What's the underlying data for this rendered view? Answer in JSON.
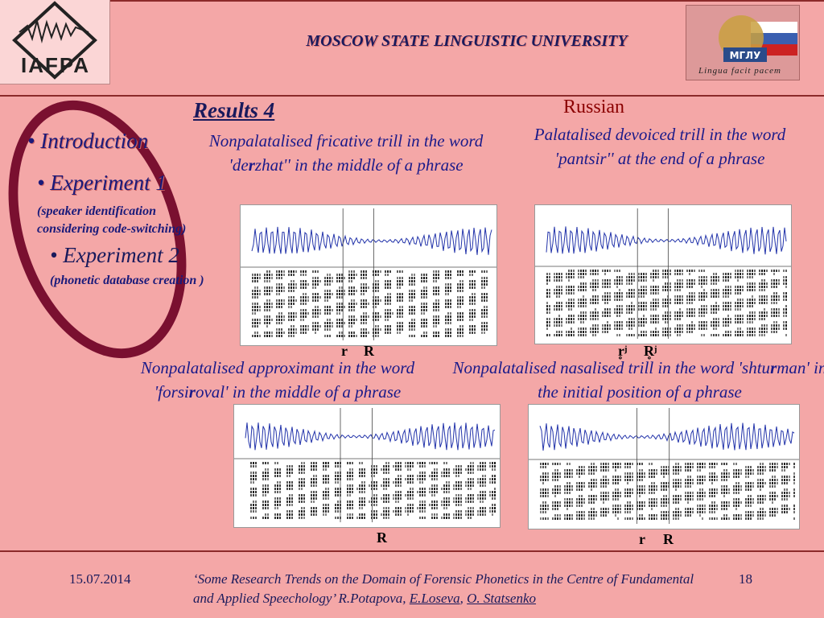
{
  "header": {
    "logo_text": "IAFPA",
    "university_title": "MOSCOW STATE LINGUISTIC UNIVERSITY",
    "crest_label": "МГЛУ",
    "motto": "Lingua facit pacem"
  },
  "nav": {
    "intro": "• Introduction",
    "exp1": "• Experiment 1",
    "exp1_sub_line1": "(speaker identification",
    "exp1_sub_line2": "considering code-switching)",
    "exp2": "• Experiment 2",
    "exp2_sub": "(phonetic database creation )"
  },
  "main": {
    "title": "Results 4",
    "language": "Russian",
    "cap1_pre": "Nonpalatalised fricative trill in the word 'de",
    "cap1_bold": "r",
    "cap1_post": "zhat'' in the middle of a phrase",
    "cap2": "Palatalised devoiced trill in the word 'pantsir'' at the end of a phrase",
    "cap3_pre": "Nonpalatalised approximant in the word 'forsi",
    "cap3_bold": "r",
    "cap3_post": "oval' in the middle of a  phrase",
    "cap4_pre": "Nonpalatalised nasalised trill in the word 'shtu",
    "cap4_bold": "r",
    "cap4_post": "man' in the initial position of a phrase",
    "marks": {
      "sp1_a": "r",
      "sp1_b": "R",
      "sp2_a": "r̥ʲ",
      "sp2_b": "R̥ʲ",
      "sp3_a": "R",
      "sp4_a": "r",
      "sp4_b": "R"
    }
  },
  "footer": {
    "date": "15.07.2014",
    "cite_pre": "‘Some Research Trends on the Domain of Forensic Phonetics in the Centre of Fundamental and Applied Speechology’ R.Potapova, ",
    "author2": "E.Loseva",
    "sep": ", ",
    "author3": "O. Statsenko",
    "page": "18"
  }
}
